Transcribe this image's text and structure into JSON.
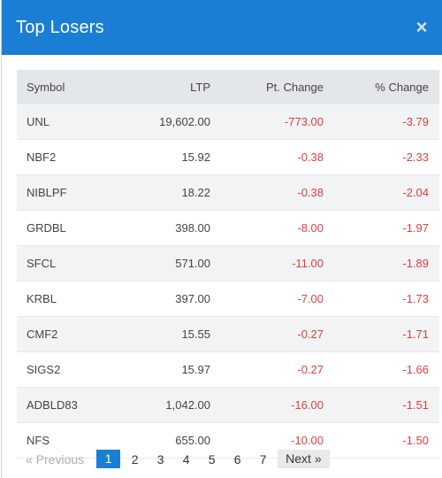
{
  "modal": {
    "title": "Top Losers",
    "close_icon": "×"
  },
  "columns": {
    "symbol": "Symbol",
    "ltp": "LTP",
    "pt_change": "Pt. Change",
    "pct_change": "% Change"
  },
  "rows": [
    {
      "symbol": "UNL",
      "ltp": "19,602.00",
      "pt_change": "-773.00",
      "pct_change": "-3.79"
    },
    {
      "symbol": "NBF2",
      "ltp": "15.92",
      "pt_change": "-0.38",
      "pct_change": "-2.33"
    },
    {
      "symbol": "NIBLPF",
      "ltp": "18.22",
      "pt_change": "-0.38",
      "pct_change": "-2.04"
    },
    {
      "symbol": "GRDBL",
      "ltp": "398.00",
      "pt_change": "-8.00",
      "pct_change": "-1.97"
    },
    {
      "symbol": "SFCL",
      "ltp": "571.00",
      "pt_change": "-11.00",
      "pct_change": "-1.89"
    },
    {
      "symbol": "KRBL",
      "ltp": "397.00",
      "pt_change": "-7.00",
      "pct_change": "-1.73"
    },
    {
      "symbol": "CMF2",
      "ltp": "15.55",
      "pt_change": "-0.27",
      "pct_change": "-1.71"
    },
    {
      "symbol": "SIGS2",
      "ltp": "15.97",
      "pt_change": "-0.27",
      "pct_change": "-1.66"
    },
    {
      "symbol": "ADBLD83",
      "ltp": "1,042.00",
      "pt_change": "-16.00",
      "pct_change": "-1.51"
    },
    {
      "symbol": "NFS",
      "ltp": "655.00",
      "pt_change": "-10.00",
      "pct_change": "-1.50"
    }
  ],
  "pagination": {
    "previous": "« Previous",
    "pages": [
      "1",
      "2",
      "3",
      "4",
      "5",
      "6",
      "7"
    ],
    "active_page": "1",
    "next": "Next »"
  },
  "colors": {
    "header": "#1a7fd4",
    "negative": "#e43d3d",
    "active_page": "#1a7fd4"
  }
}
